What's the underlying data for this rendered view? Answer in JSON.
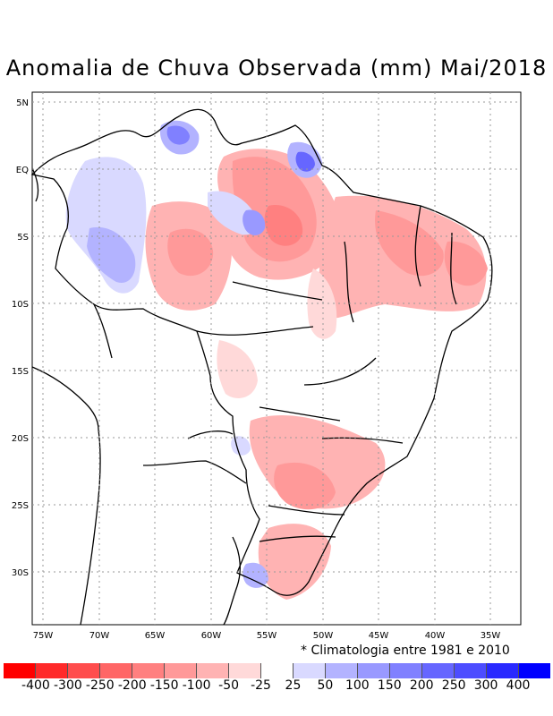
{
  "title": "Anomalia de Chuva Observada (mm) Mai/2018",
  "note": "* Climatologia entre 1981 e 2010",
  "lat_labels": [
    "5N",
    "EQ",
    "5S",
    "10S",
    "15S",
    "20S",
    "25S",
    "30S"
  ],
  "lon_labels": [
    "75W",
    "70W",
    "65W",
    "60W",
    "55W",
    "50W",
    "45W",
    "40W",
    "35W"
  ],
  "legend": {
    "colors": [
      "#ff0000",
      "#ff2a2a",
      "#ff4d4d",
      "#ff6666",
      "#ff8080",
      "#ff9999",
      "#ffb3b3",
      "#ffd9d9",
      "#ffffff",
      "#d9d9ff",
      "#b3b3ff",
      "#9999ff",
      "#8080ff",
      "#6666ff",
      "#4d4dff",
      "#2a2aff",
      "#0000ff"
    ],
    "labels": [
      "-400",
      "-300",
      "-250",
      "-200",
      "-150",
      "-100",
      "-50",
      "-25",
      "25",
      "50",
      "100",
      "150",
      "200",
      "250",
      "300",
      "400"
    ]
  },
  "anomaly_areas": [
    {
      "region": "Para / Amapa",
      "class": "-150",
      "color": "#ff9999"
    },
    {
      "region": "Northeast coast",
      "class": "-100",
      "color": "#ffb3b3"
    },
    {
      "region": "Western Amazonas",
      "class": "100",
      "color": "#b3b3ff"
    },
    {
      "region": "Roraima",
      "class": "150",
      "color": "#9999ff"
    },
    {
      "region": "South / Parana",
      "class": "-100",
      "color": "#ffb3b3"
    }
  ]
}
